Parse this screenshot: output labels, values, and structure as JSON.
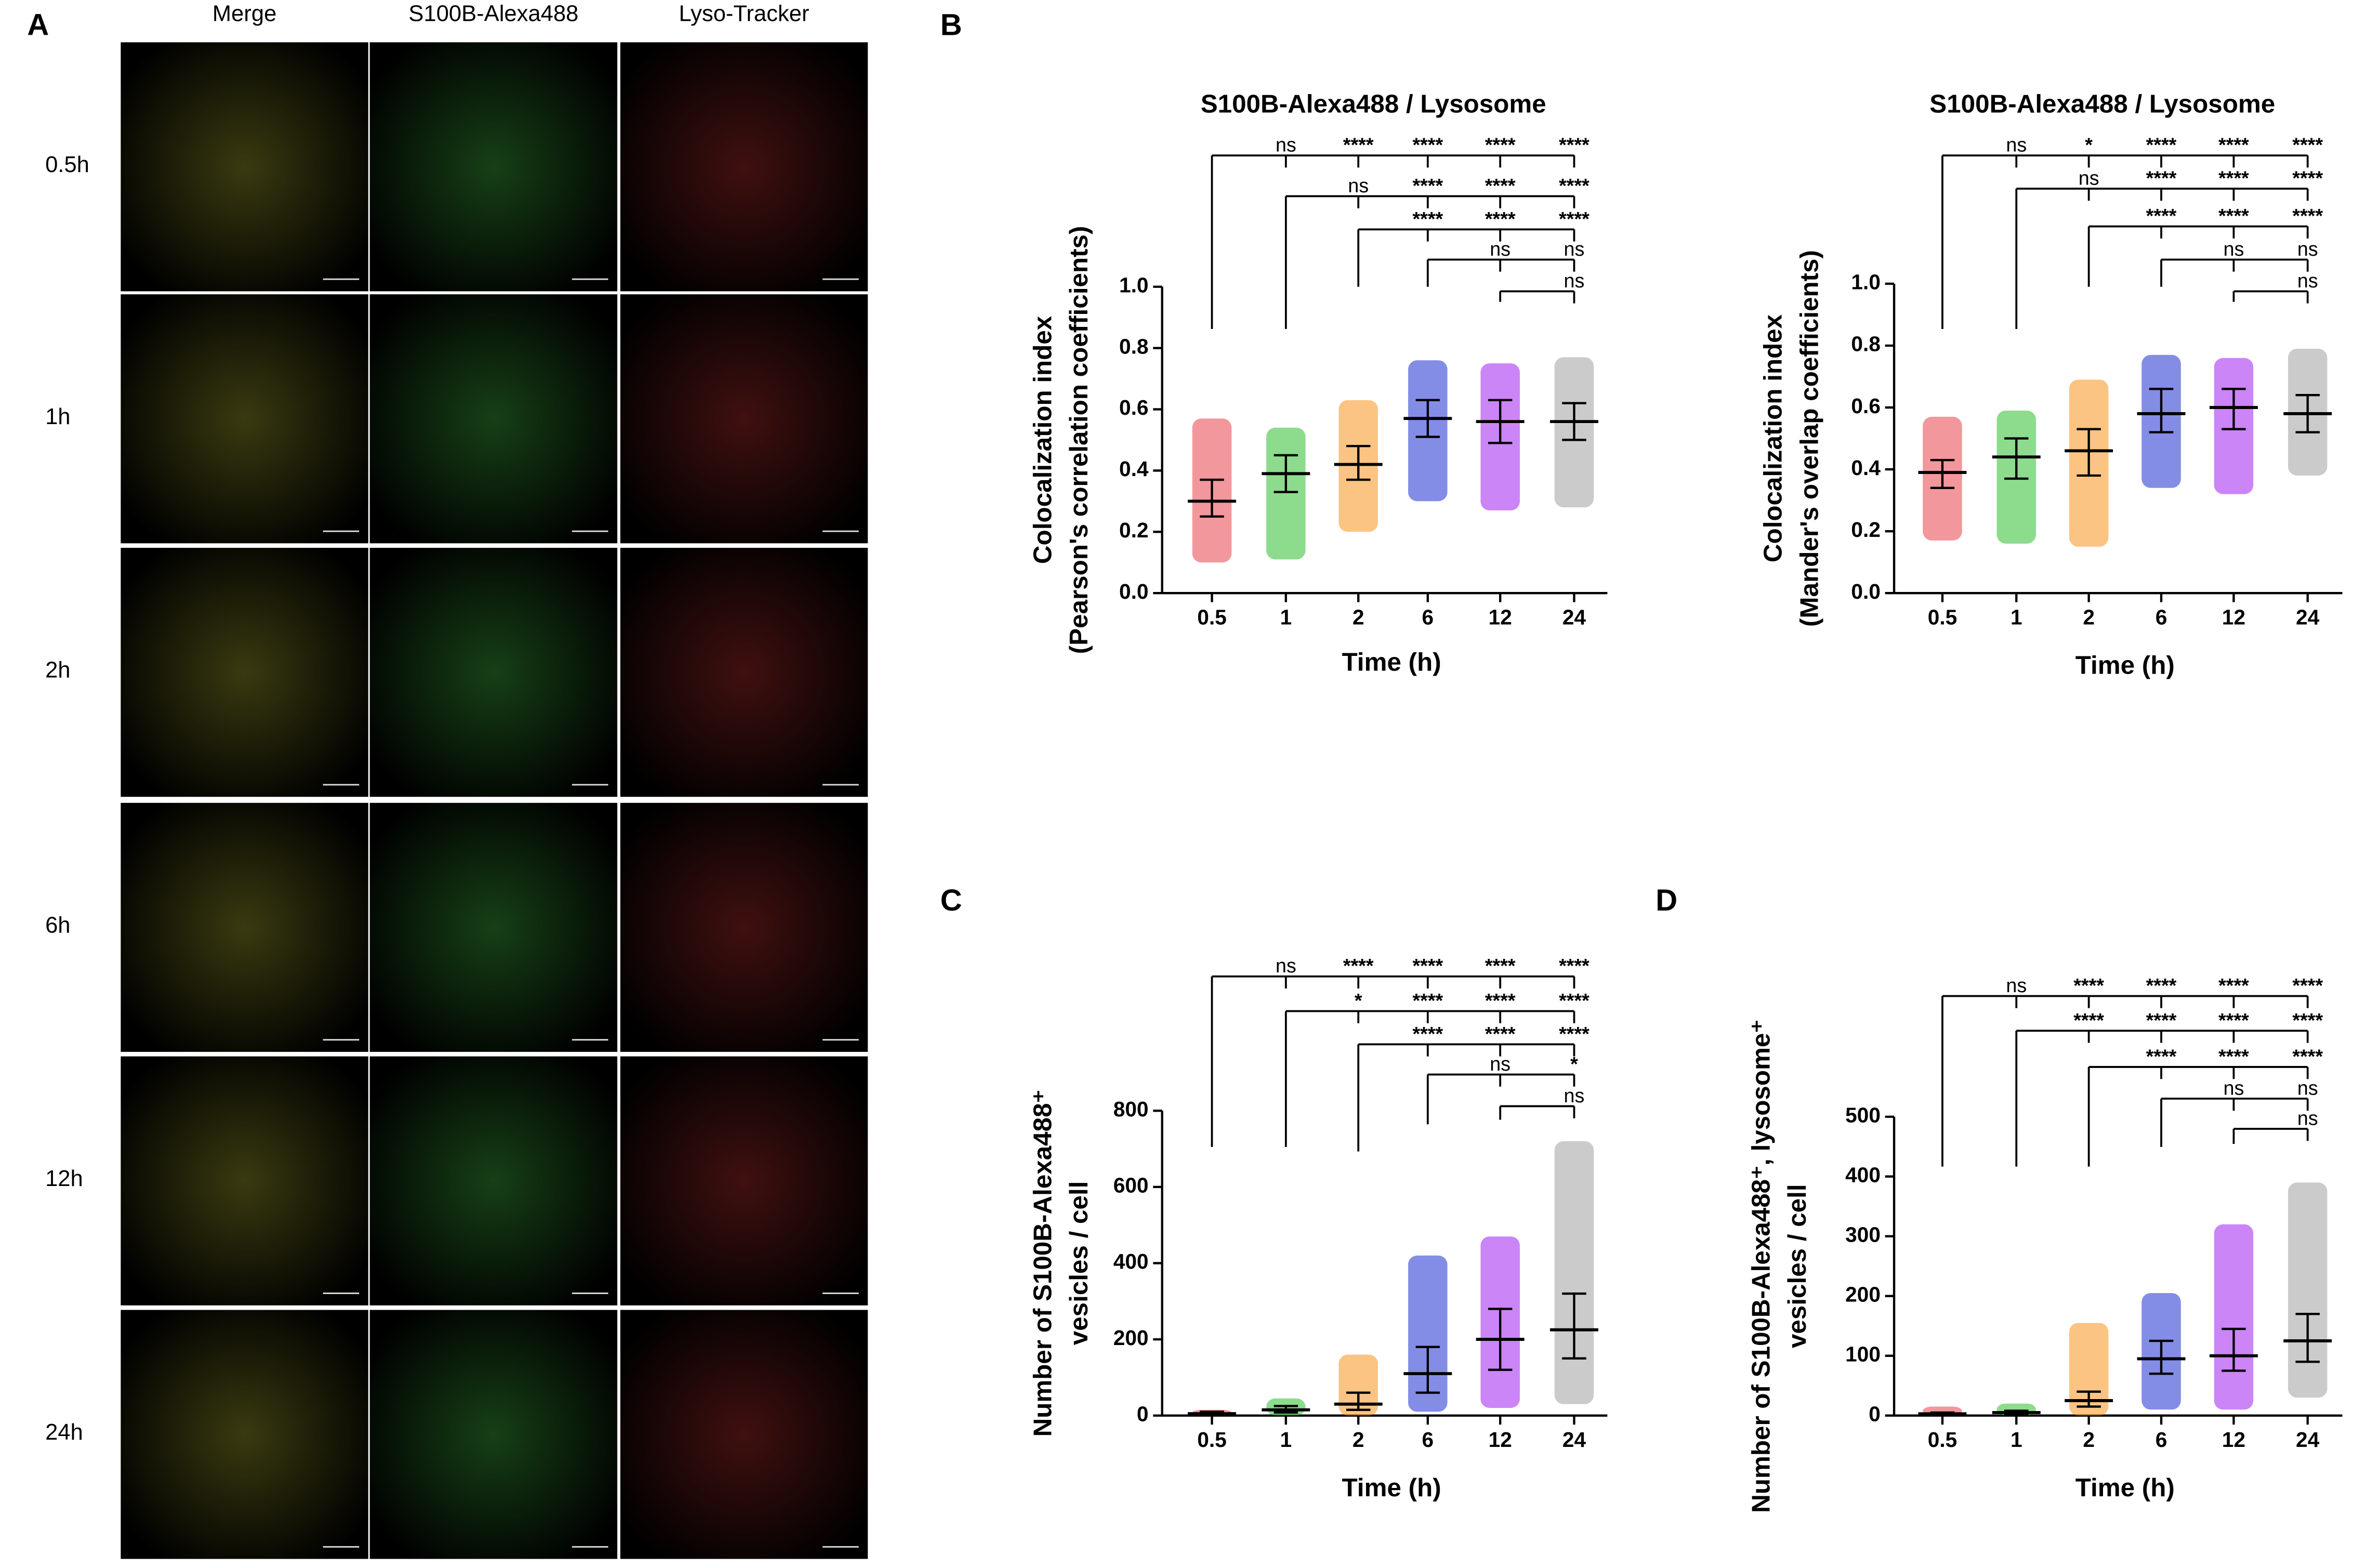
{
  "panel_labels": [
    "A",
    "B",
    "C",
    "D"
  ],
  "microscopy": {
    "columns": [
      "Merge",
      "S100B-Alexa488",
      "Lyso-Tracker"
    ],
    "rows": [
      "0.5h",
      "1h",
      "2h",
      "6h",
      "12h",
      "24h"
    ]
  },
  "chart_data": [
    {
      "type": "dotplot",
      "title": "S100B-Alexa488 / Lysosome",
      "x_label": "Time (h)",
      "y_label": [
        "Colocalization index",
        "(Pearson's correlation coefficients)"
      ],
      "categories": [
        "0.5",
        "1",
        "2",
        "6",
        "12",
        "24"
      ],
      "colors": [
        "#e8424a",
        "#2fbd2f",
        "#f7941d",
        "#1f2fd0",
        "#a020f0",
        "#a0a0a0"
      ],
      "values": [
        0.3,
        0.39,
        0.42,
        0.57,
        0.56,
        0.56
      ],
      "lower": [
        0.25,
        0.33,
        0.37,
        0.51,
        0.49,
        0.5
      ],
      "upper": [
        0.37,
        0.45,
        0.48,
        0.63,
        0.63,
        0.62
      ],
      "min": [
        0.1,
        0.11,
        0.2,
        0.3,
        0.27,
        0.28
      ],
      "max": [
        0.57,
        0.54,
        0.63,
        0.76,
        0.75,
        0.77
      ],
      "ylim": [
        0,
        1
      ],
      "yticks": [
        {
          "value": 0,
          "label": "0.0"
        },
        0.2,
        0.4,
        0.6,
        0.8,
        {
          "value": 1,
          "label": "1.0"
        }
      ],
      "comparisons": [
        [
          "ns",
          "****",
          "****",
          "****",
          "****"
        ],
        [
          "ns",
          "****",
          "****",
          "****"
        ],
        [
          "****",
          "****",
          "****"
        ],
        [
          "ns",
          "ns"
        ],
        [
          "ns"
        ]
      ]
    },
    {
      "type": "dotplot",
      "title": "S100B-Alexa488 / Lysosome",
      "x_label": "Time (h)",
      "y_label": [
        "Colocalization index",
        "(Mander's overlap coefficients)"
      ],
      "categories": [
        "0.5",
        "1",
        "2",
        "6",
        "12",
        "24"
      ],
      "colors": [
        "#e8424a",
        "#2fbd2f",
        "#f7941d",
        "#1f2fd0",
        "#a020f0",
        "#a0a0a0"
      ],
      "values": [
        0.39,
        0.44,
        0.46,
        0.58,
        0.6,
        0.58
      ],
      "lower": [
        0.34,
        0.37,
        0.38,
        0.52,
        0.53,
        0.52
      ],
      "upper": [
        0.43,
        0.5,
        0.53,
        0.66,
        0.66,
        0.64
      ],
      "min": [
        0.17,
        0.16,
        0.15,
        0.34,
        0.32,
        0.38
      ],
      "max": [
        0.57,
        0.59,
        0.69,
        0.77,
        0.76,
        0.79
      ],
      "ylim": [
        0,
        1
      ],
      "yticks": [
        {
          "value": 0,
          "label": "0.0"
        },
        0.2,
        0.4,
        0.6,
        0.8,
        {
          "value": 1,
          "label": "1.0"
        }
      ],
      "comparisons": [
        [
          "ns",
          "*",
          "****",
          "****",
          "****"
        ],
        [
          "ns",
          "****",
          "****",
          "****"
        ],
        [
          "****",
          "****",
          "****"
        ],
        [
          "ns",
          "ns"
        ],
        [
          "ns"
        ]
      ]
    },
    {
      "type": "dotplot",
      "x_label": "Time (h)",
      "y_label": [
        "Number of S100B-Alexa488⁺",
        "vesicles / cell"
      ],
      "categories": [
        "0.5",
        "1",
        "2",
        "6",
        "12",
        "24"
      ],
      "colors": [
        "#e8424a",
        "#2fbd2f",
        "#f7941d",
        "#1f2fd0",
        "#a020f0",
        "#a0a0a0"
      ],
      "values": [
        5,
        15,
        30,
        110,
        200,
        225
      ],
      "lower": [
        2,
        8,
        15,
        60,
        120,
        150
      ],
      "upper": [
        10,
        25,
        60,
        180,
        280,
        320
      ],
      "min": [
        0,
        0,
        0,
        10,
        20,
        30
      ],
      "max": [
        15,
        45,
        160,
        420,
        470,
        720
      ],
      "ylim": [
        0,
        800
      ],
      "yticks": [
        0,
        200,
        400,
        600,
        800
      ],
      "comparisons": [
        [
          "ns",
          "****",
          "****",
          "****",
          "****"
        ],
        [
          "*",
          "****",
          "****",
          "****"
        ],
        [
          "****",
          "****",
          "****"
        ],
        [
          "ns",
          "*"
        ],
        [
          "ns"
        ]
      ]
    },
    {
      "type": "dotplot",
      "x_label": "Time (h)",
      "y_label": [
        "Number of S100B-Alexa488⁺, lysosome⁺",
        "vesicles / cell"
      ],
      "categories": [
        "0.5",
        "1",
        "2",
        "6",
        "12",
        "24"
      ],
      "colors": [
        "#e8424a",
        "#2fbd2f",
        "#f7941d",
        "#1f2fd0",
        "#a020f0",
        "#a0a0a0"
      ],
      "values": [
        3,
        5,
        25,
        95,
        100,
        125
      ],
      "lower": [
        1,
        2,
        15,
        70,
        75,
        90
      ],
      "upper": [
        5,
        8,
        40,
        125,
        145,
        170
      ],
      "min": [
        0,
        0,
        0,
        10,
        10,
        30
      ],
      "max": [
        15,
        20,
        155,
        205,
        320,
        390
      ],
      "ylim": [
        0,
        500
      ],
      "yticks": [
        0,
        100,
        200,
        300,
        400,
        500
      ],
      "comparisons": [
        [
          "ns",
          "****",
          "****",
          "****",
          "****"
        ],
        [
          "****",
          "****",
          "****",
          "****"
        ],
        [
          "****",
          "****",
          "****"
        ],
        [
          "ns",
          "ns"
        ],
        [
          "ns"
        ]
      ]
    }
  ]
}
